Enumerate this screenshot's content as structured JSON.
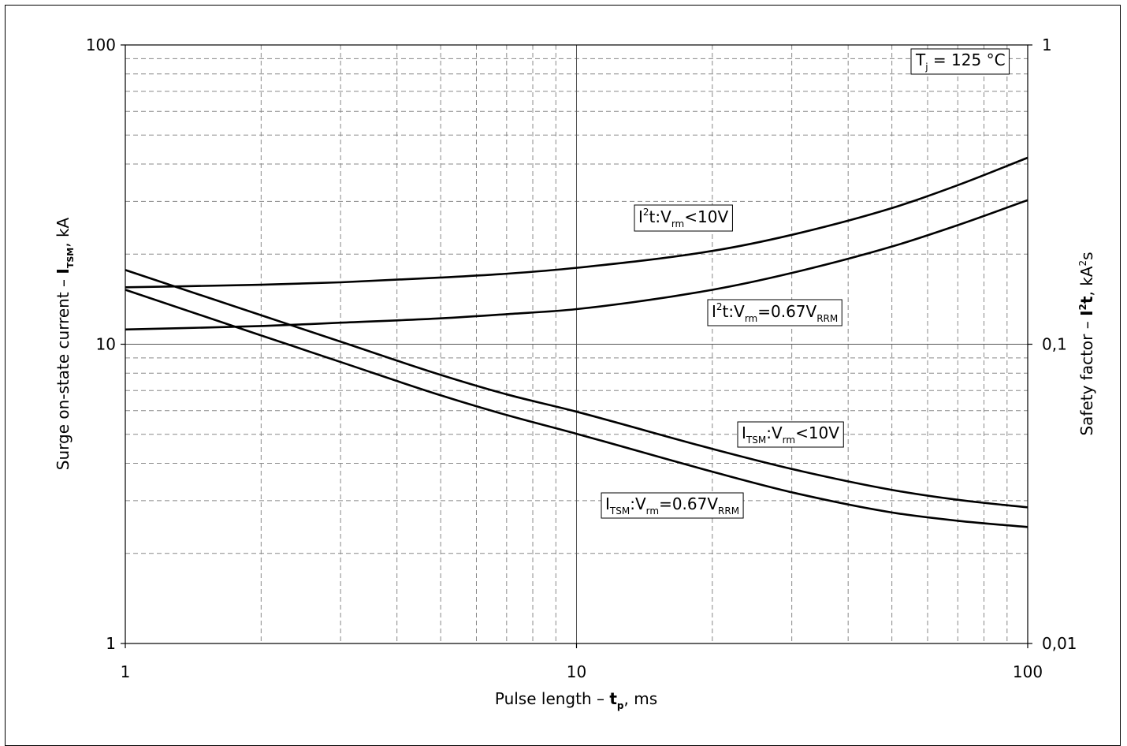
{
  "chart_data": {
    "type": "line",
    "x_scale": "log",
    "y_scale": "log",
    "y2_scale": "log",
    "xlim": [
      1,
      100
    ],
    "ylim": [
      1,
      100
    ],
    "y2lim": [
      0.01,
      1
    ],
    "grid": true,
    "x_ticks": [
      "1",
      "10",
      "100"
    ],
    "y_ticks": [
      "100",
      "10",
      "1"
    ],
    "y2_ticks": [
      "1",
      "0,1",
      "0,01"
    ],
    "xlabel": {
      "pre": "Pulse length – ",
      "sym": "t",
      "sub": "p",
      "post": ", ms"
    },
    "ylabel": {
      "pre": "Surge on-state current – ",
      "sym": "I",
      "sub": "TSM",
      "post": ", kA"
    },
    "y2label": {
      "pre": "Safety factor – ",
      "sym": "I",
      "sup": "2",
      "sym2": "t",
      "post": ", kA",
      "unit_sup": "2",
      "unit_end": "s"
    },
    "annotation": {
      "main": "T",
      "sub": "j",
      "rest": " = 125 °C"
    },
    "series": [
      {
        "label_parts": [
          [
            "I",
            ""
          ],
          [
            "2",
            "sup"
          ],
          [
            "t:V",
            ""
          ],
          [
            "rm",
            "sub"
          ],
          [
            "<10V",
            ""
          ]
        ],
        "axis": "y2",
        "x": [
          1,
          2,
          3,
          5,
          7,
          10,
          20,
          30,
          50,
          70,
          100
        ],
        "y": [
          0.155,
          0.158,
          0.161,
          0.167,
          0.172,
          0.18,
          0.205,
          0.232,
          0.285,
          0.34,
          0.42
        ]
      },
      {
        "label_parts": [
          [
            "I",
            ""
          ],
          [
            "2",
            "sup"
          ],
          [
            "t:V",
            ""
          ],
          [
            "rm",
            "sub"
          ],
          [
            "=0.67V",
            ""
          ],
          [
            "RRM",
            "sub"
          ]
        ],
        "axis": "y2",
        "x": [
          1,
          2,
          3,
          5,
          7,
          10,
          20,
          30,
          50,
          70,
          100
        ],
        "y": [
          0.112,
          0.115,
          0.118,
          0.122,
          0.126,
          0.131,
          0.152,
          0.173,
          0.212,
          0.25,
          0.303
        ]
      },
      {
        "label_parts": [
          [
            "I",
            ""
          ],
          [
            "TSM",
            "sub"
          ],
          [
            ":V",
            ""
          ],
          [
            "rm",
            "sub"
          ],
          [
            "<10V",
            ""
          ]
        ],
        "axis": "y",
        "x": [
          1,
          2,
          3,
          5,
          7,
          10,
          20,
          30,
          50,
          70,
          100
        ],
        "y": [
          17.7,
          12.5,
          10.2,
          7.9,
          6.8,
          5.95,
          4.47,
          3.83,
          3.26,
          3.02,
          2.85
        ]
      },
      {
        "label_parts": [
          [
            "I",
            ""
          ],
          [
            "TSM",
            "sub"
          ],
          [
            ":V",
            ""
          ],
          [
            "rm",
            "sub"
          ],
          [
            "=0.67V",
            ""
          ],
          [
            "RRM",
            "sub"
          ]
        ],
        "axis": "y",
        "x": [
          1,
          2,
          3,
          5,
          7,
          10,
          20,
          30,
          50,
          70,
          100
        ],
        "y": [
          15.2,
          10.7,
          8.72,
          6.75,
          5.8,
          5.02,
          3.75,
          3.2,
          2.74,
          2.57,
          2.45
        ]
      }
    ]
  }
}
